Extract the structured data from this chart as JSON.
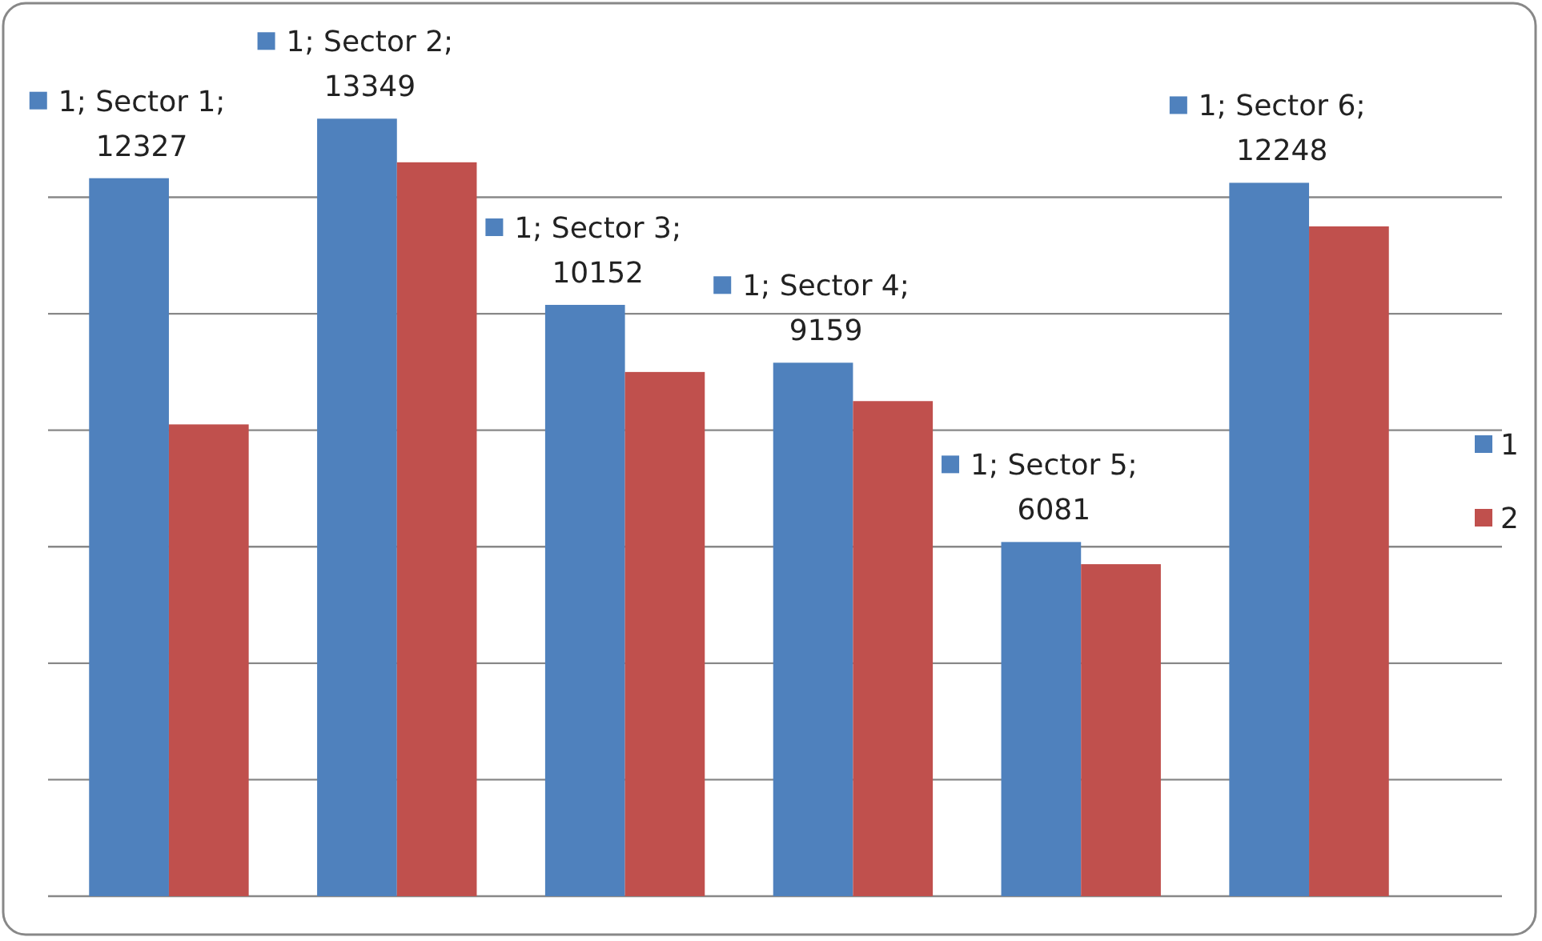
{
  "chart_data": {
    "type": "bar",
    "categories": [
      null,
      null,
      null,
      null,
      null,
      null
    ],
    "series": [
      {
        "name": "1",
        "color": "#4f81bd",
        "values": [
          12327,
          13349,
          10152,
          9159,
          6081,
          12248
        ],
        "value_labels": [
          "1; Sector 1; 12327",
          "1; Sector 2; 13349",
          "1; Sector 3; 10152",
          "1; Sector 4; 9159",
          "1; Sector 5; 6081",
          "1; Sector 6; 12248"
        ]
      },
      {
        "name": "2",
        "color": "#c0504d",
        "values": [
          8100,
          12600,
          9000,
          8500,
          5700,
          11500
        ]
      }
    ],
    "yticks": [
      {
        "value": 0,
        "label": null
      },
      {
        "value": 2000,
        "label": null
      },
      {
        "value": 4000,
        "label": null
      },
      {
        "value": 6000,
        "label": null
      },
      {
        "value": 8000,
        "label": null
      },
      {
        "value": 10000,
        "label": null
      },
      {
        "value": 12000,
        "label": null
      }
    ],
    "grid": "y",
    "legend": "right"
  }
}
